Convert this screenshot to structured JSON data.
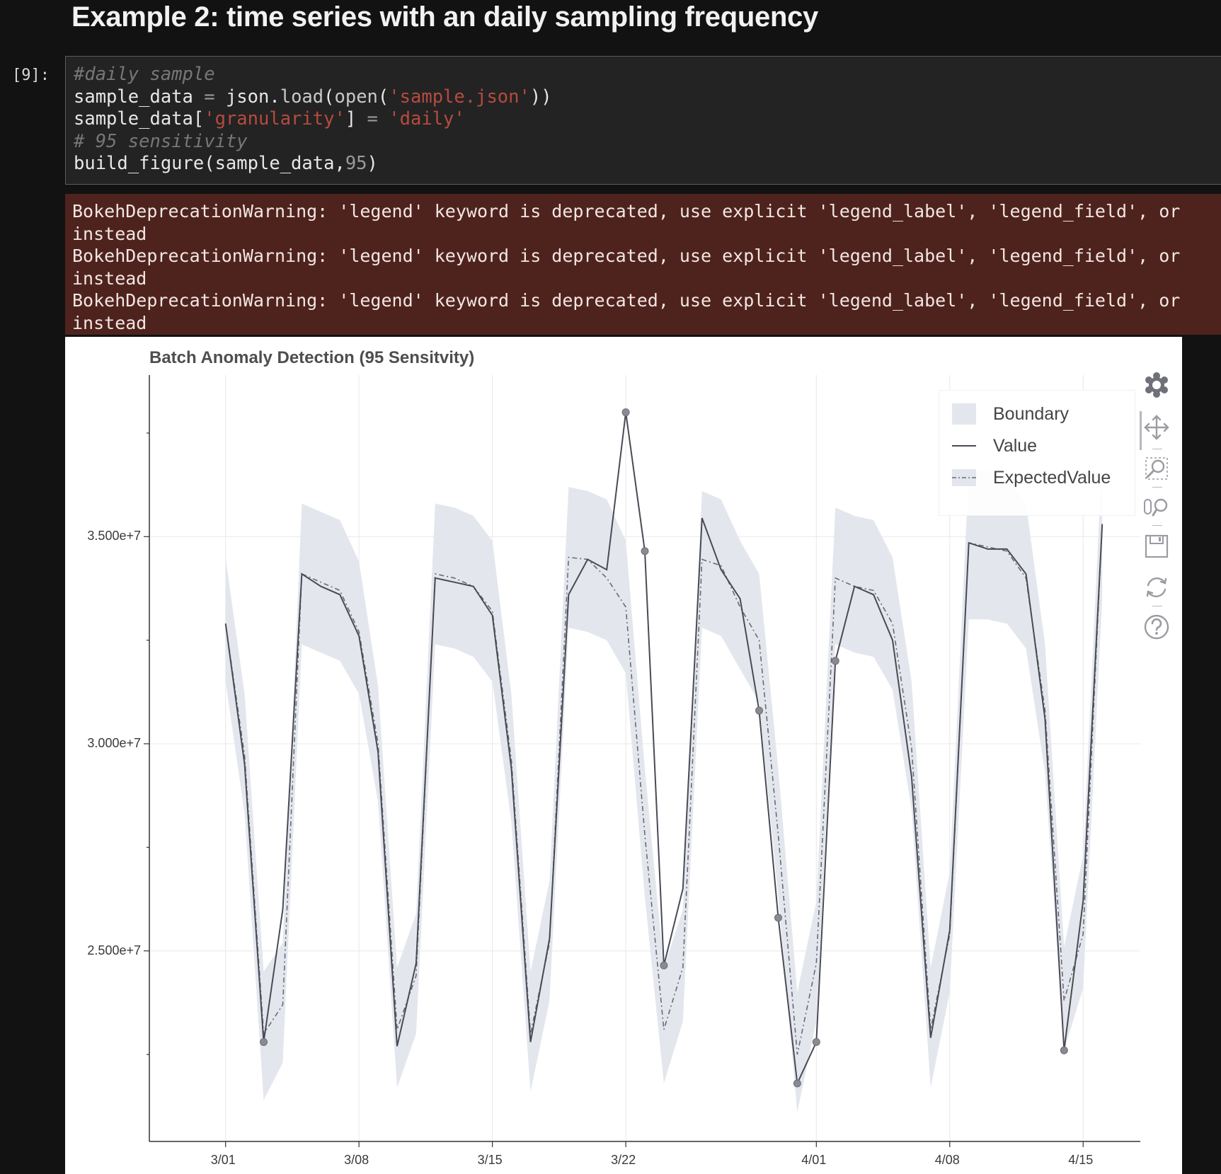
{
  "heading": "Example 2: time series with an daily sampling frequency",
  "cell": {
    "prompt": "[9]:",
    "code_lines": [
      [
        {
          "t": "#daily sample",
          "c": "com"
        }
      ],
      [
        {
          "t": "sample_data ",
          "c": "txt"
        },
        {
          "t": "=",
          "c": "op"
        },
        {
          "t": " json.",
          "c": "txt"
        },
        {
          "t": "load",
          "c": "fn"
        },
        {
          "t": "(",
          "c": "txt"
        },
        {
          "t": "open",
          "c": "fn"
        },
        {
          "t": "(",
          "c": "txt"
        },
        {
          "t": "'sample.json'",
          "c": "str"
        },
        {
          "t": "))",
          "c": "txt"
        }
      ],
      [
        {
          "t": "sample_data[",
          "c": "txt"
        },
        {
          "t": "'granularity'",
          "c": "str"
        },
        {
          "t": "] ",
          "c": "txt"
        },
        {
          "t": "=",
          "c": "op"
        },
        {
          "t": " ",
          "c": "txt"
        },
        {
          "t": "'daily'",
          "c": "str"
        }
      ],
      [
        {
          "t": "# 95 sensitivity",
          "c": "com"
        }
      ],
      [
        {
          "t": "build_figure(sample_data,",
          "c": "txt"
        },
        {
          "t": "95",
          "c": "num"
        },
        {
          "t": ")",
          "c": "txt"
        }
      ]
    ]
  },
  "warnings": [
    "BokehDeprecationWarning: 'legend' keyword is deprecated, use explicit 'legend_label', 'legend_field', or",
    "instead",
    "BokehDeprecationWarning: 'legend' keyword is deprecated, use explicit 'legend_label', 'legend_field', or",
    "instead",
    "BokehDeprecationWarning: 'legend' keyword is deprecated, use explicit 'legend_label', 'legend_field', or",
    "instead"
  ],
  "toolbar": {
    "tools": [
      "bokeh-logo-icon",
      "pan-icon",
      "box-zoom-icon",
      "wheel-zoom-icon",
      "save-icon",
      "reset-icon",
      "help-icon"
    ]
  },
  "colors": {
    "background": "#121212",
    "code_bg": "#232323",
    "warning_bg": "#4f231d",
    "boundary_fill": "#e3e7ed",
    "line": "#4a4a55",
    "anomaly_marker": "#8a8a92"
  },
  "chart_data": {
    "type": "line",
    "title": "Batch Anomaly Detection (95 Sensitvity)",
    "x": [
      "2020-03-01",
      "2020-03-02",
      "2020-03-03",
      "2020-03-04",
      "2020-03-05",
      "2020-03-06",
      "2020-03-07",
      "2020-03-08",
      "2020-03-09",
      "2020-03-10",
      "2020-03-11",
      "2020-03-12",
      "2020-03-13",
      "2020-03-14",
      "2020-03-15",
      "2020-03-16",
      "2020-03-17",
      "2020-03-18",
      "2020-03-19",
      "2020-03-20",
      "2020-03-21",
      "2020-03-22",
      "2020-03-23",
      "2020-03-24",
      "2020-03-25",
      "2020-03-26",
      "2020-03-27",
      "2020-03-28",
      "2020-03-29",
      "2020-03-30",
      "2020-03-31",
      "2020-04-01",
      "2020-04-02",
      "2020-04-03",
      "2020-04-04",
      "2020-04-05",
      "2020-04-06",
      "2020-04-07",
      "2020-04-08",
      "2020-04-09",
      "2020-04-10",
      "2020-04-11",
      "2020-04-12",
      "2020-04-13",
      "2020-04-14",
      "2020-04-15",
      "2020-04-16"
    ],
    "series": [
      {
        "name": "Value",
        "values": [
          32900000,
          29500000,
          22800000,
          26000000,
          34100000,
          33800000,
          33600000,
          32600000,
          29800000,
          22700000,
          24700000,
          34000000,
          33900000,
          33800000,
          33100000,
          29400000,
          22800000,
          25300000,
          33600000,
          34450000,
          34200000,
          38000000,
          34650000,
          24650000,
          26500000,
          35450000,
          34200000,
          33500000,
          30800000,
          25800000,
          21800000,
          22800000,
          32000000,
          33800000,
          33600000,
          32500000,
          29200000,
          22900000,
          25500000,
          34850000,
          34700000,
          34700000,
          34100000,
          30600000,
          22600000,
          26200000,
          35300000
        ]
      },
      {
        "name": "ExpectedValue",
        "values": [
          32900000,
          29700000,
          23000000,
          23700000,
          34100000,
          33900000,
          33700000,
          32700000,
          30000000,
          23100000,
          24400000,
          34100000,
          34000000,
          33800000,
          33200000,
          29600000,
          23000000,
          25200000,
          34500000,
          34450000,
          34000000,
          33300000,
          27800000,
          23100000,
          24600000,
          34450000,
          34300000,
          33300000,
          32500000,
          27800000,
          22500000,
          24700000,
          34000000,
          33800000,
          33700000,
          32900000,
          29900000,
          23100000,
          25400000,
          34850000,
          34750000,
          34650000,
          34000000,
          30800000,
          23800000,
          25400000,
          35300000
        ]
      },
      {
        "name": "Boundary",
        "lower": [
          31500000,
          28300000,
          21400000,
          22300000,
          32400000,
          32200000,
          32000000,
          31200000,
          28600000,
          21700000,
          23000000,
          32400000,
          32300000,
          32100000,
          31500000,
          28100000,
          21600000,
          23800000,
          32800000,
          32700000,
          32500000,
          31700000,
          26300000,
          21800000,
          23300000,
          32800000,
          32600000,
          31800000,
          31000000,
          26300000,
          21100000,
          23300000,
          32400000,
          32200000,
          32100000,
          31300000,
          28400000,
          21700000,
          24000000,
          33000000,
          33000000,
          32900000,
          32300000,
          29300000,
          22600000,
          24100000,
          33500000
        ],
        "upper": [
          34500000,
          31200000,
          24500000,
          25200000,
          35800000,
          35600000,
          35400000,
          34400000,
          31400000,
          24600000,
          25900000,
          35800000,
          35700000,
          35500000,
          34900000,
          31200000,
          24500000,
          26700000,
          36200000,
          36100000,
          35900000,
          34900000,
          29400000,
          24600000,
          26000000,
          36100000,
          35900000,
          34900000,
          34100000,
          29400000,
          24000000,
          26200000,
          35700000,
          35500000,
          35400000,
          34500000,
          31500000,
          24600000,
          26900000,
          36600000,
          36600000,
          36400000,
          35800000,
          32400000,
          25100000,
          27300000,
          37000000
        ]
      }
    ],
    "anomalies": [
      {
        "x": "2020-03-03",
        "y": 22800000
      },
      {
        "x": "2020-03-22",
        "y": 38000000
      },
      {
        "x": "2020-03-23",
        "y": 34650000
      },
      {
        "x": "2020-03-24",
        "y": 24650000
      },
      {
        "x": "2020-03-29",
        "y": 30800000
      },
      {
        "x": "2020-03-30",
        "y": 25800000
      },
      {
        "x": "2020-03-31",
        "y": 21800000
      },
      {
        "x": "2020-04-01",
        "y": 22800000
      },
      {
        "x": "2020-04-02",
        "y": 32000000
      },
      {
        "x": "2020-04-14",
        "y": 22600000
      }
    ],
    "xticks": [
      "3/01",
      "3/08",
      "3/15",
      "3/22",
      "4/01",
      "4/08",
      "4/15"
    ],
    "xtick_dates": [
      "2020-03-01",
      "2020-03-08",
      "2020-03-15",
      "2020-03-22",
      "2020-04-01",
      "2020-04-08",
      "2020-04-15"
    ],
    "yticks": [
      "2.500e+7",
      "3.000e+7",
      "3.500e+7"
    ],
    "ytick_values": [
      25000000,
      30000000,
      35000000
    ],
    "ylim": [
      20400000,
      38900000
    ],
    "xlim": [
      "2020-02-26",
      "2020-04-18"
    ],
    "legend": [
      "Boundary",
      "Value",
      "ExpectedValue"
    ],
    "legend_position": "top-right",
    "grid": true
  }
}
